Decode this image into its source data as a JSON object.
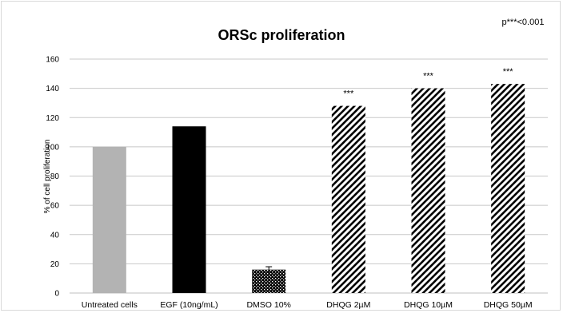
{
  "chart_data": {
    "type": "bar",
    "title": "ORSc proliferation",
    "annotation": "p***<0.001",
    "ylabel": "% of cell proliferation",
    "xlabel": "",
    "ylim": [
      0,
      160
    ],
    "yticks": [
      "0",
      "20",
      "40",
      "60",
      "80",
      "100",
      "120",
      "140",
      "160"
    ],
    "grid": true,
    "categories": [
      "Untreated cells",
      "EGF (10ng/mL)",
      "DMSO 10%",
      "DHQG 2µM",
      "DHQG 10µM",
      "DHQG 50µM"
    ],
    "values": [
      100,
      114,
      16,
      128,
      140,
      143
    ],
    "error": [
      0,
      0,
      2,
      0,
      0,
      0
    ],
    "significance": [
      "",
      "",
      "",
      "***",
      "***",
      "***"
    ],
    "fills": [
      "solid-gray",
      "solid-black",
      "dotted-black",
      "diagonal-hatch",
      "diagonal-hatch",
      "diagonal-hatch"
    ],
    "colors": {
      "gray": "#b3b3b3",
      "black": "#000000",
      "grid": "#c8c8c8"
    }
  }
}
